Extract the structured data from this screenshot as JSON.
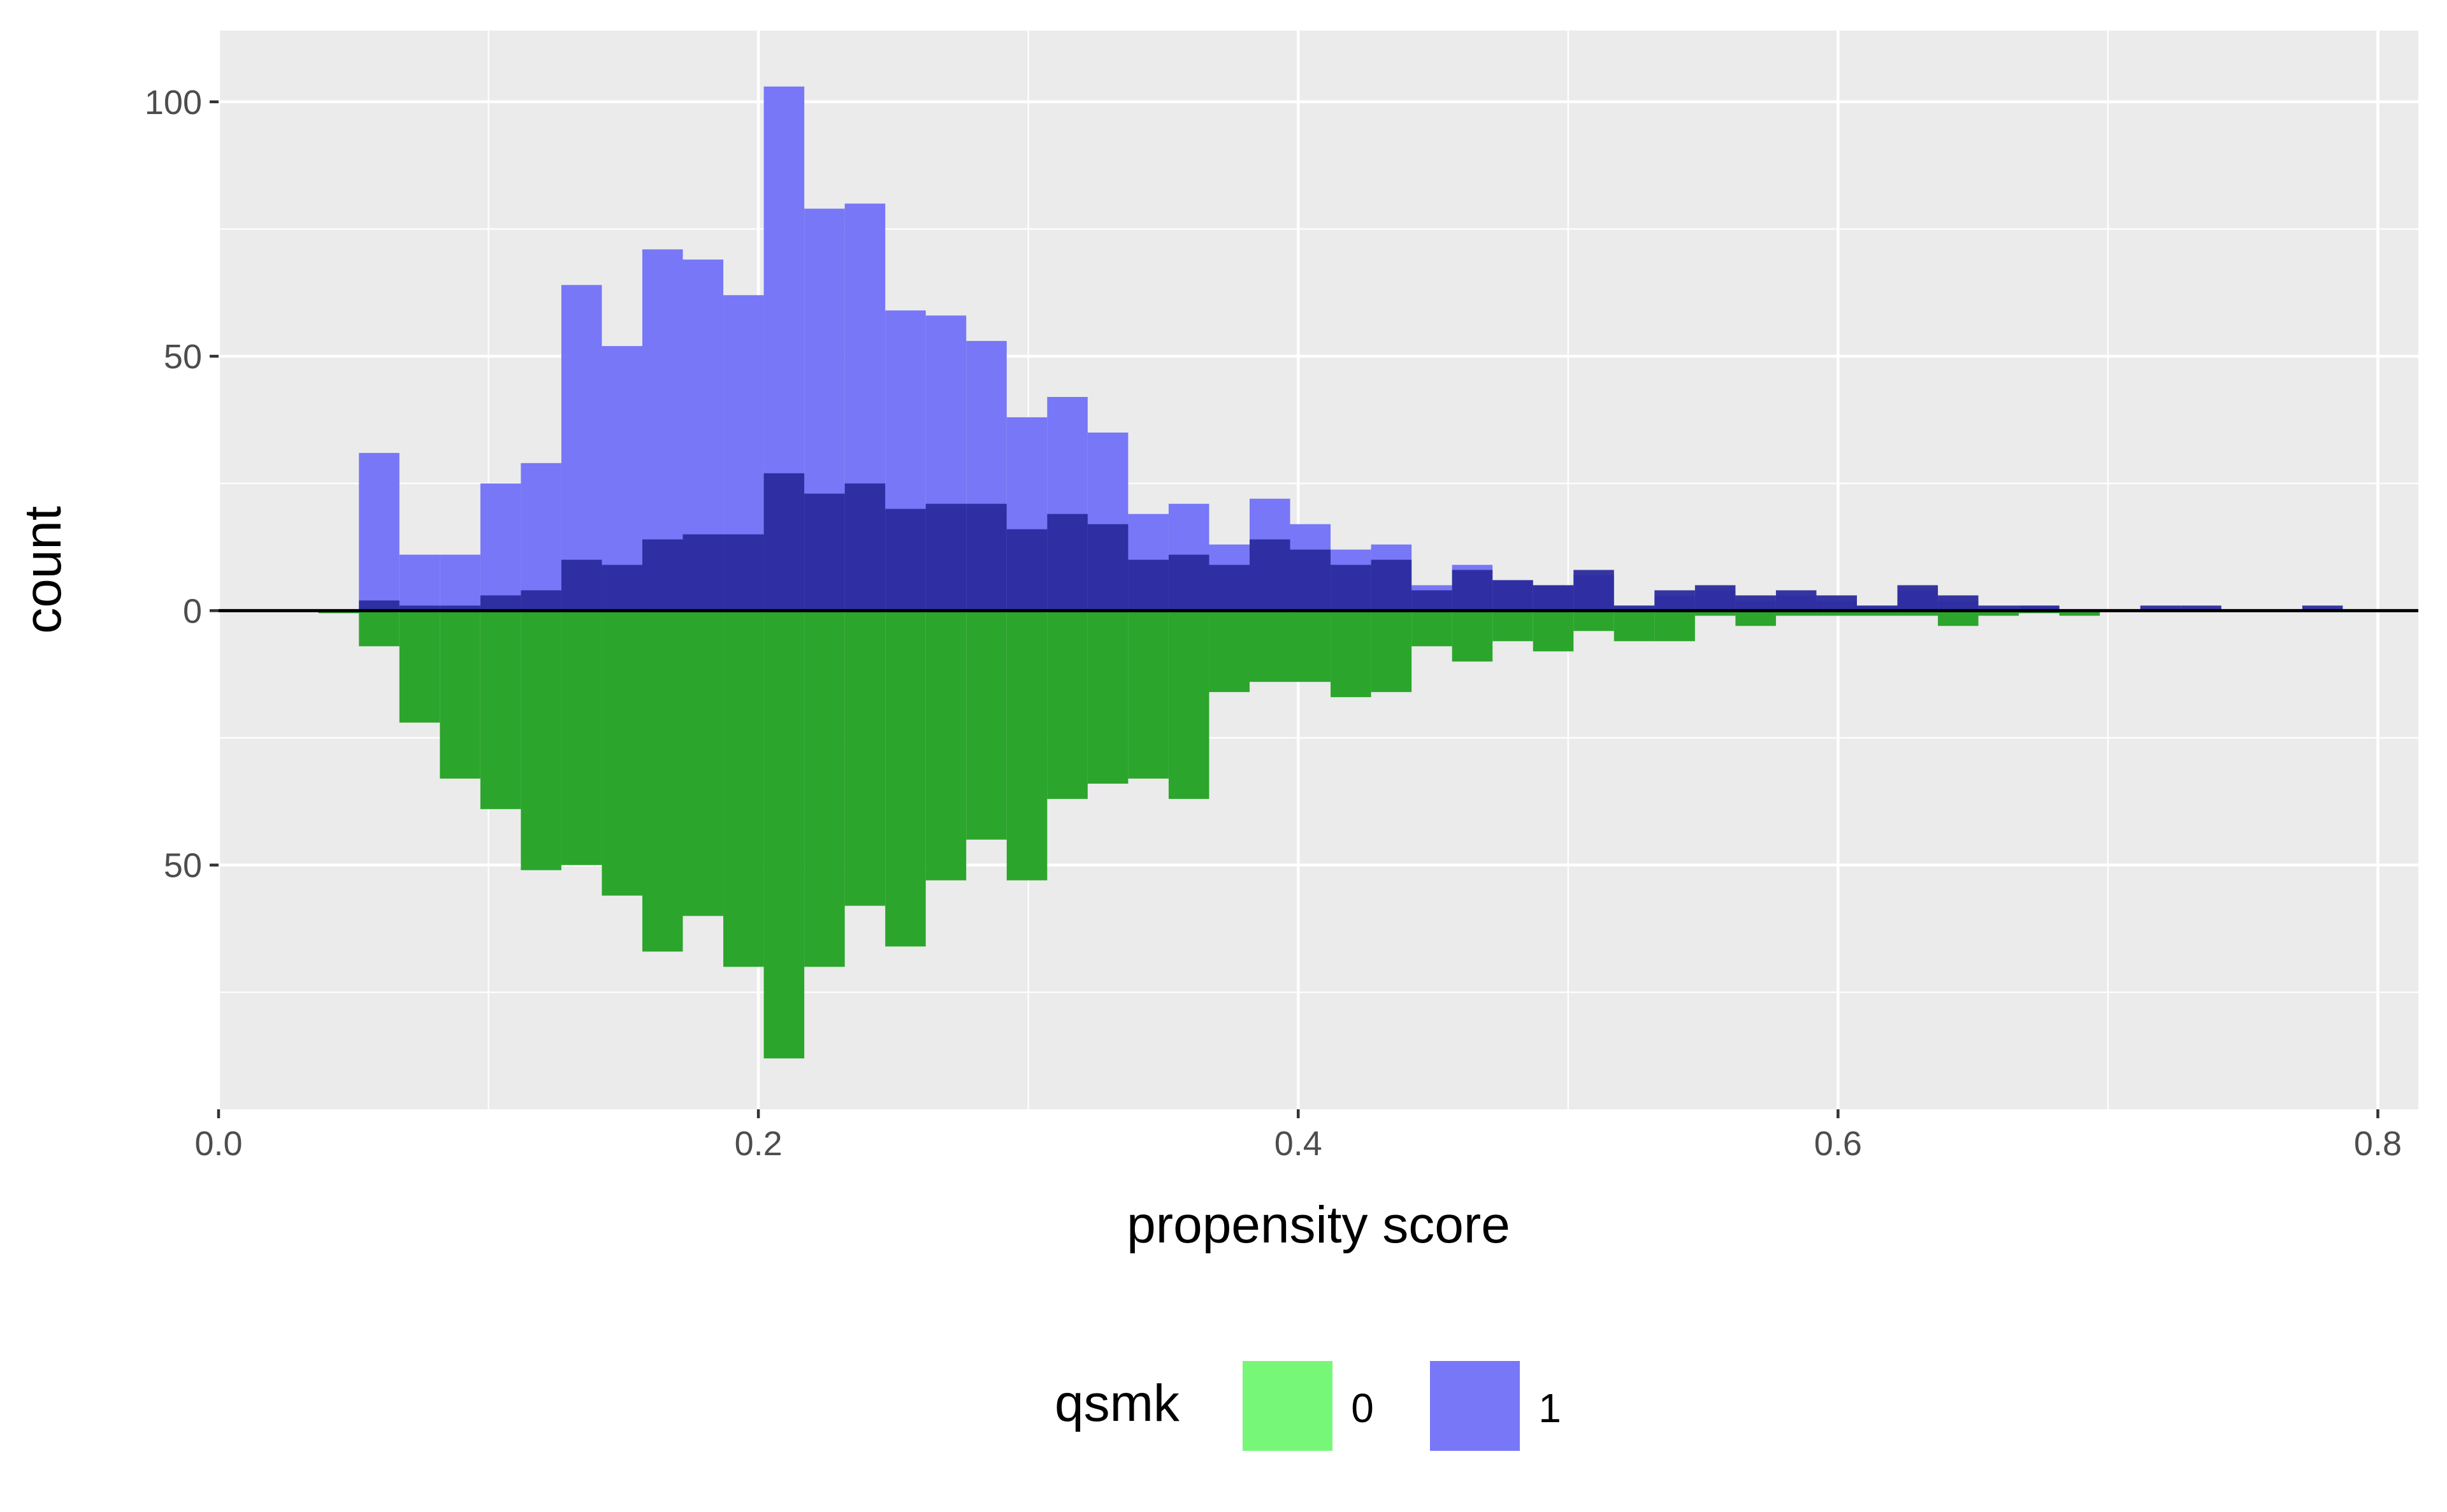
{
  "chart_data": {
    "type": "bar",
    "subtype": "mirrored-histogram",
    "xlabel": "propensity score",
    "ylabel": "count",
    "xlim": [
      0.0,
      0.815
    ],
    "ylim": [
      -98,
      114
    ],
    "x_ticks": [
      0.0,
      0.2,
      0.4,
      0.6,
      0.8
    ],
    "x_tick_labels": [
      "0.0",
      "0.2",
      "0.4",
      "0.6",
      "0.8"
    ],
    "y_ticks": [
      100,
      50,
      0,
      -50
    ],
    "y_tick_labels": [
      "100",
      "50",
      "0",
      "50"
    ],
    "grid": true,
    "bin_width": 0.015,
    "legend": {
      "title": "qsmk",
      "position": "bottom",
      "entries": [
        {
          "label": "0",
          "color": "#77f777"
        },
        {
          "label": "1",
          "color": "#7777f7"
        }
      ]
    },
    "colors": {
      "panel": "#ebebeb",
      "grid": "#ffffff",
      "treated_light": "#7777f7",
      "treated_dark": "#2b2b9e",
      "control": "#2ca52c",
      "zero_line": "#000000"
    },
    "series": [
      {
        "name": "1",
        "bin_starts": [
          0.052,
          0.067,
          0.082,
          0.097,
          0.112,
          0.127,
          0.142,
          0.157,
          0.172,
          0.187,
          0.202,
          0.217,
          0.232,
          0.247,
          0.262,
          0.277,
          0.292,
          0.307,
          0.322,
          0.337,
          0.352,
          0.367,
          0.382,
          0.397,
          0.412,
          0.427,
          0.442,
          0.457,
          0.472,
          0.487,
          0.502,
          0.517,
          0.532,
          0.547,
          0.562,
          0.577,
          0.592,
          0.607,
          0.622,
          0.637,
          0.652,
          0.667,
          0.682,
          0.697,
          0.712,
          0.727,
          0.742,
          0.757,
          0.772
        ],
        "values": [
          31,
          11,
          11,
          25,
          29,
          64,
          52,
          71,
          69,
          62,
          103,
          79,
          80,
          59,
          58,
          53,
          38,
          42,
          35,
          19,
          21,
          13,
          22,
          17,
          12,
          13,
          5,
          9,
          6,
          5,
          7,
          1,
          3,
          4,
          2,
          3,
          2,
          1,
          4,
          2,
          0,
          1,
          0,
          0,
          0,
          0,
          0,
          0,
          0
        ]
      },
      {
        "name": "treated-dark-overlay",
        "bin_starts": [
          0.052,
          0.067,
          0.082,
          0.097,
          0.112,
          0.127,
          0.142,
          0.157,
          0.172,
          0.187,
          0.202,
          0.217,
          0.232,
          0.247,
          0.262,
          0.277,
          0.292,
          0.307,
          0.322,
          0.337,
          0.352,
          0.367,
          0.382,
          0.397,
          0.412,
          0.427,
          0.442,
          0.457,
          0.472,
          0.487,
          0.502,
          0.517,
          0.532,
          0.547,
          0.562,
          0.577,
          0.592,
          0.607,
          0.622,
          0.637,
          0.652,
          0.667,
          0.682,
          0.697,
          0.712,
          0.727,
          0.742,
          0.757,
          0.772
        ],
        "values": [
          2,
          1,
          1,
          3,
          4,
          10,
          9,
          14,
          15,
          15,
          27,
          23,
          25,
          20,
          21,
          21,
          16,
          19,
          17,
          10,
          11,
          9,
          14,
          12,
          9,
          10,
          4,
          8,
          6,
          5,
          8,
          1,
          4,
          5,
          3,
          4,
          3,
          1,
          5,
          3,
          1,
          1,
          0,
          0,
          1,
          1,
          0,
          0,
          1
        ]
      },
      {
        "name": "0",
        "bin_starts": [
          0.037,
          0.052,
          0.067,
          0.082,
          0.097,
          0.112,
          0.127,
          0.142,
          0.157,
          0.172,
          0.187,
          0.202,
          0.217,
          0.232,
          0.247,
          0.262,
          0.277,
          0.292,
          0.307,
          0.322,
          0.337,
          0.352,
          0.367,
          0.382,
          0.397,
          0.412,
          0.427,
          0.442,
          0.457,
          0.472,
          0.487,
          0.502,
          0.517,
          0.532,
          0.547,
          0.562,
          0.577,
          0.592,
          0.607,
          0.622,
          0.637,
          0.652,
          0.667,
          0.682,
          0.697,
          0.712,
          0.727,
          0.742,
          0.757,
          0.772
        ],
        "values": [
          -0.5,
          -7,
          -22,
          -33,
          -39,
          -51,
          -50,
          -56,
          -67,
          -60,
          -70,
          -88,
          -70,
          -58,
          -66,
          -53,
          -45,
          -53,
          -37,
          -34,
          -33,
          -37,
          -16,
          -14,
          -14,
          -17,
          -16,
          -7,
          -10,
          -6,
          -8,
          -4,
          -6,
          -6,
          -1,
          -3,
          -1,
          -1,
          -1,
          -1,
          -3,
          -1,
          -0.5,
          -1,
          0,
          0,
          0,
          0,
          0,
          0
        ]
      }
    ]
  }
}
